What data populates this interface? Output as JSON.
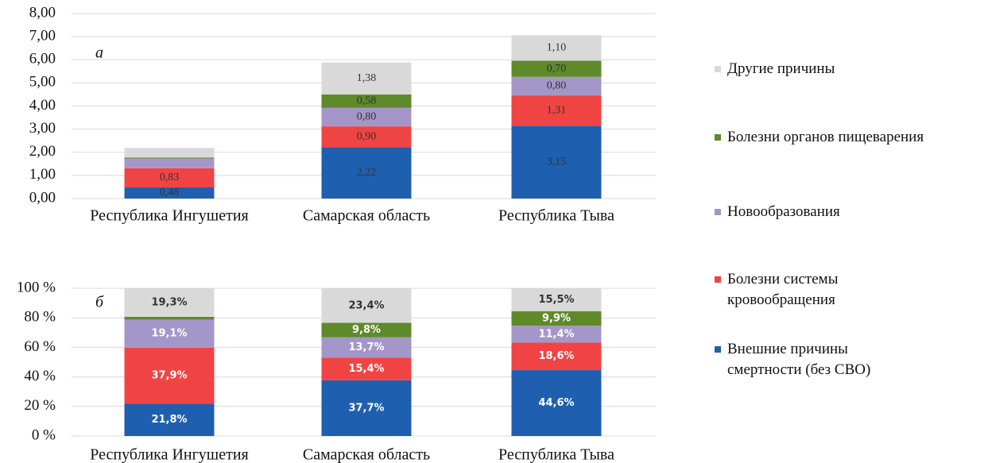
{
  "chart_data": [
    {
      "type": "bar",
      "stacked": true,
      "panel": "а",
      "categories": [
        "Республика Ингушетия",
        "Самарская область",
        "Республика Тыва"
      ],
      "ylim": [
        0,
        8
      ],
      "yticks": [
        {
          "value": 0,
          "label": "0,00"
        },
        {
          "value": 1,
          "label": "1,00"
        },
        {
          "value": 2,
          "label": "2,00"
        },
        {
          "value": 3,
          "label": "3,00"
        },
        {
          "value": 4,
          "label": "4,00"
        },
        {
          "value": 5,
          "label": "5,00"
        },
        {
          "value": 6,
          "label": "6,00"
        },
        {
          "value": 7,
          "label": "7,00"
        },
        {
          "value": 8,
          "label": "8,00"
        }
      ],
      "grid": true,
      "series": [
        {
          "name": "Внешние причины\nсмертности (без СВО)",
          "color": "#1f5fb0",
          "values": [
            0.48,
            2.22,
            3.15
          ],
          "value_labels": [
            "0,48",
            "2,22",
            "3,15"
          ]
        },
        {
          "name": "Болезни системы\nкровообращения",
          "color": "#f04444",
          "values": [
            0.83,
            0.9,
            1.31
          ],
          "value_labels": [
            "0,83",
            "0,90",
            "1,31"
          ]
        },
        {
          "name": "Новообразования",
          "color": "#a596c9",
          "values": [
            0.42,
            0.8,
            0.8
          ],
          "value_labels": [
            null,
            "0,80",
            "0,80"
          ]
        },
        {
          "name": "Болезни органов пищеварения",
          "color": "#5e8a2a",
          "values": [
            0.04,
            0.58,
            0.7
          ],
          "value_labels": [
            null,
            "0,58",
            "0,70"
          ]
        },
        {
          "name": "Другие причины",
          "color": "#d9d9d9",
          "values": [
            0.42,
            1.38,
            1.1
          ],
          "value_labels": [
            null,
            "1,38",
            "1,10"
          ]
        }
      ]
    },
    {
      "type": "bar",
      "stacked": true,
      "panel": "б",
      "categories": [
        "Республика Ингушетия",
        "Самарская область",
        "Республика Тыва"
      ],
      "ylim": [
        0,
        100
      ],
      "yticks": [
        {
          "value": 0,
          "label": "0 %"
        },
        {
          "value": 20,
          "label": "20 %"
        },
        {
          "value": 40,
          "label": "40 %"
        },
        {
          "value": 60,
          "label": "60 %"
        },
        {
          "value": 80,
          "label": "80 %"
        },
        {
          "value": 100,
          "label": "100 %"
        }
      ],
      "grid": true,
      "series": [
        {
          "color": "#1f5fb0",
          "values": [
            21.8,
            37.7,
            44.6
          ],
          "value_labels": [
            "21,8%",
            "37,7%",
            "44,6%"
          ]
        },
        {
          "color": "#f04444",
          "values": [
            37.9,
            15.4,
            18.6
          ],
          "value_labels": [
            "37,9%",
            "15,4%",
            "18,6%"
          ]
        },
        {
          "color": "#a596c9",
          "values": [
            19.1,
            13.7,
            11.4
          ],
          "value_labels": [
            "19,1%",
            "13,7%",
            "11,4%"
          ]
        },
        {
          "color": "#5e8a2a",
          "values": [
            1.9,
            9.8,
            9.9
          ],
          "value_labels": [
            null,
            "9,8%",
            "9,9%"
          ]
        },
        {
          "color": "#d9d9d9",
          "values": [
            19.3,
            23.4,
            15.5
          ],
          "value_labels": [
            "19,3%",
            "23,4%",
            "15,5%"
          ]
        }
      ]
    }
  ]
}
